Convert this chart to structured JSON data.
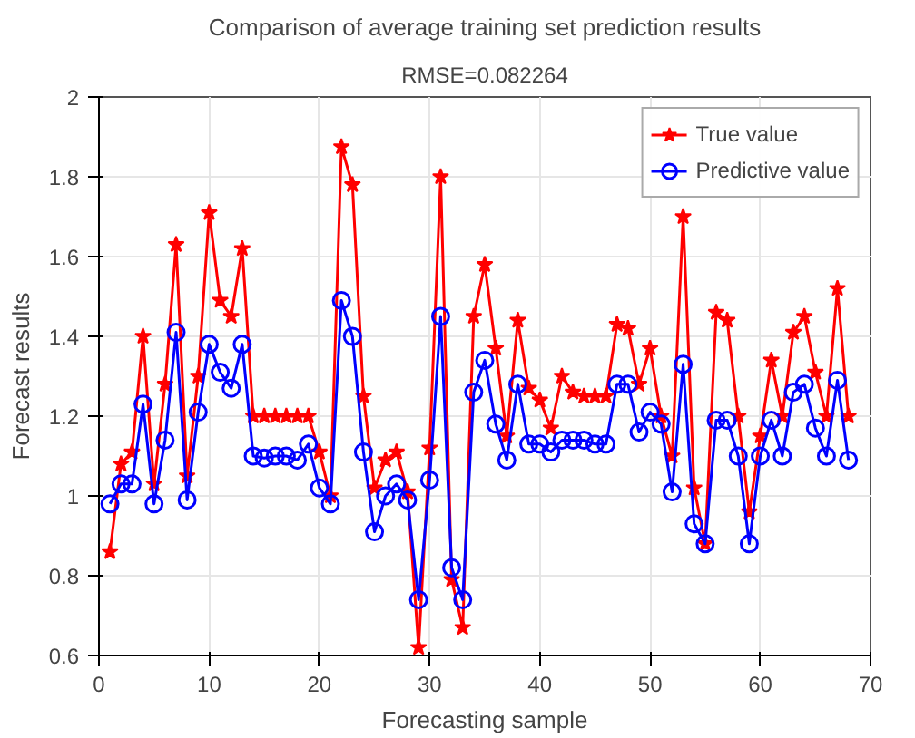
{
  "chart_data": {
    "type": "line",
    "title": "Comparison of average training set prediction results",
    "subtitle": "RMSE=0.082264",
    "xlabel": "Forecasting sample",
    "ylabel": "Forecast results",
    "x": [
      1,
      2,
      3,
      4,
      5,
      6,
      7,
      8,
      9,
      10,
      11,
      12,
      13,
      14,
      15,
      16,
      17,
      18,
      19,
      20,
      21,
      22,
      23,
      24,
      25,
      26,
      27,
      28,
      29,
      30,
      31,
      32,
      33,
      34,
      35,
      36,
      37,
      38,
      39,
      40,
      41,
      42,
      43,
      44,
      45,
      46,
      47,
      48,
      49,
      50,
      51,
      52,
      53,
      54,
      55,
      56,
      57,
      58,
      59,
      60,
      61,
      62,
      63,
      64,
      65,
      66,
      67,
      68
    ],
    "series": [
      {
        "name": "True value",
        "color": "#ff0000",
        "marker": "star",
        "values": [
          0.86,
          1.08,
          1.11,
          1.4,
          1.03,
          1.28,
          1.63,
          1.05,
          1.3,
          1.71,
          1.49,
          1.45,
          1.62,
          1.2,
          1.2,
          1.2,
          1.2,
          1.2,
          1.2,
          1.11,
          1.0,
          1.875,
          1.78,
          1.25,
          1.02,
          1.09,
          1.11,
          1.01,
          0.62,
          1.12,
          1.8,
          0.79,
          0.67,
          1.45,
          1.58,
          1.37,
          1.15,
          1.44,
          1.27,
          1.24,
          1.17,
          1.3,
          1.26,
          1.25,
          1.25,
          1.25,
          1.43,
          1.42,
          1.28,
          1.37,
          1.2,
          1.1,
          1.7,
          1.02,
          0.88,
          1.46,
          1.44,
          1.2,
          0.96,
          1.15,
          1.34,
          1.2,
          1.41,
          1.45,
          1.31,
          1.2,
          1.52,
          1.2
        ]
      },
      {
        "name": "Predictive value",
        "color": "#0000ff",
        "marker": "circle",
        "values": [
          0.98,
          1.03,
          1.03,
          1.23,
          0.98,
          1.14,
          1.41,
          0.99,
          1.21,
          1.38,
          1.31,
          1.27,
          1.38,
          1.1,
          1.095,
          1.1,
          1.1,
          1.09,
          1.13,
          1.02,
          0.98,
          1.49,
          1.4,
          1.11,
          0.91,
          1.0,
          1.03,
          0.99,
          0.74,
          1.04,
          1.45,
          0.82,
          0.74,
          1.26,
          1.34,
          1.18,
          1.09,
          1.28,
          1.13,
          1.13,
          1.11,
          1.14,
          1.14,
          1.14,
          1.13,
          1.13,
          1.28,
          1.28,
          1.16,
          1.21,
          1.18,
          1.01,
          1.33,
          0.93,
          0.88,
          1.19,
          1.19,
          1.1,
          0.88,
          1.1,
          1.19,
          1.1,
          1.26,
          1.28,
          1.17,
          1.1,
          1.29,
          1.09
        ]
      }
    ],
    "xlim": [
      0,
      70
    ],
    "xticks": [
      0,
      10,
      20,
      30,
      40,
      50,
      60,
      70
    ],
    "ylim": [
      0.6,
      2
    ],
    "yticks": [
      0.6,
      0.8,
      1,
      1.2,
      1.4,
      1.6,
      1.8,
      2
    ],
    "grid": true,
    "legend": "top right",
    "line_style": "solid"
  }
}
